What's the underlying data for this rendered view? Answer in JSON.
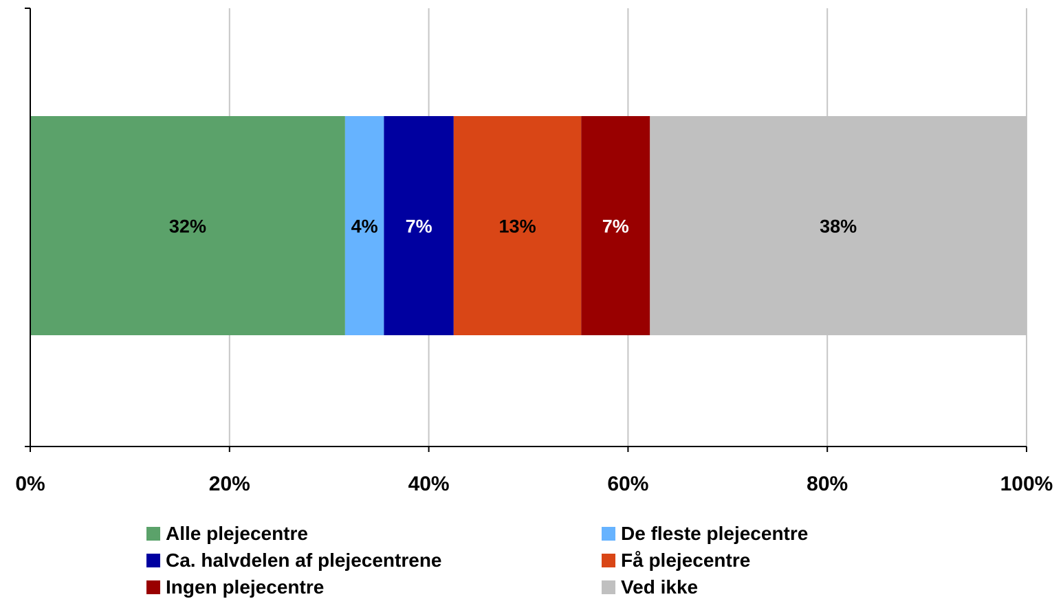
{
  "chart_data": {
    "type": "bar",
    "orientation": "horizontal",
    "stacked": true,
    "normalized": true,
    "title": "",
    "xlabel": "",
    "ylabel": "",
    "xlim": [
      0,
      100
    ],
    "x_ticks": [
      "0%",
      "20%",
      "40%",
      "60%",
      "80%",
      "100%"
    ],
    "grid": "vertical",
    "legend_position": "bottom",
    "series": [
      {
        "name": "Alle plejecentre",
        "value": 31.6,
        "label": "32%",
        "color": "#5ba26a",
        "label_color": "#000000"
      },
      {
        "name": "De fleste plejecentre",
        "value": 3.9,
        "label": "4%",
        "color": "#66b3ff",
        "label_color": "#000000"
      },
      {
        "name": "Ca. halvdelen af plejecentrene",
        "value": 7.0,
        "label": "7%",
        "color": "#0000a0",
        "label_color": "#ffffff"
      },
      {
        "name": "Få plejecentre",
        "value": 12.8,
        "label": "13%",
        "color": "#d94616",
        "label_color": "#000000"
      },
      {
        "name": "Ingen plejecentre",
        "value": 6.9,
        "label": "7%",
        "color": "#990000",
        "label_color": "#ffffff"
      },
      {
        "name": "Ved ikke",
        "value": 37.8,
        "label": "38%",
        "color": "#c0c0c0",
        "label_color": "#000000"
      }
    ]
  }
}
